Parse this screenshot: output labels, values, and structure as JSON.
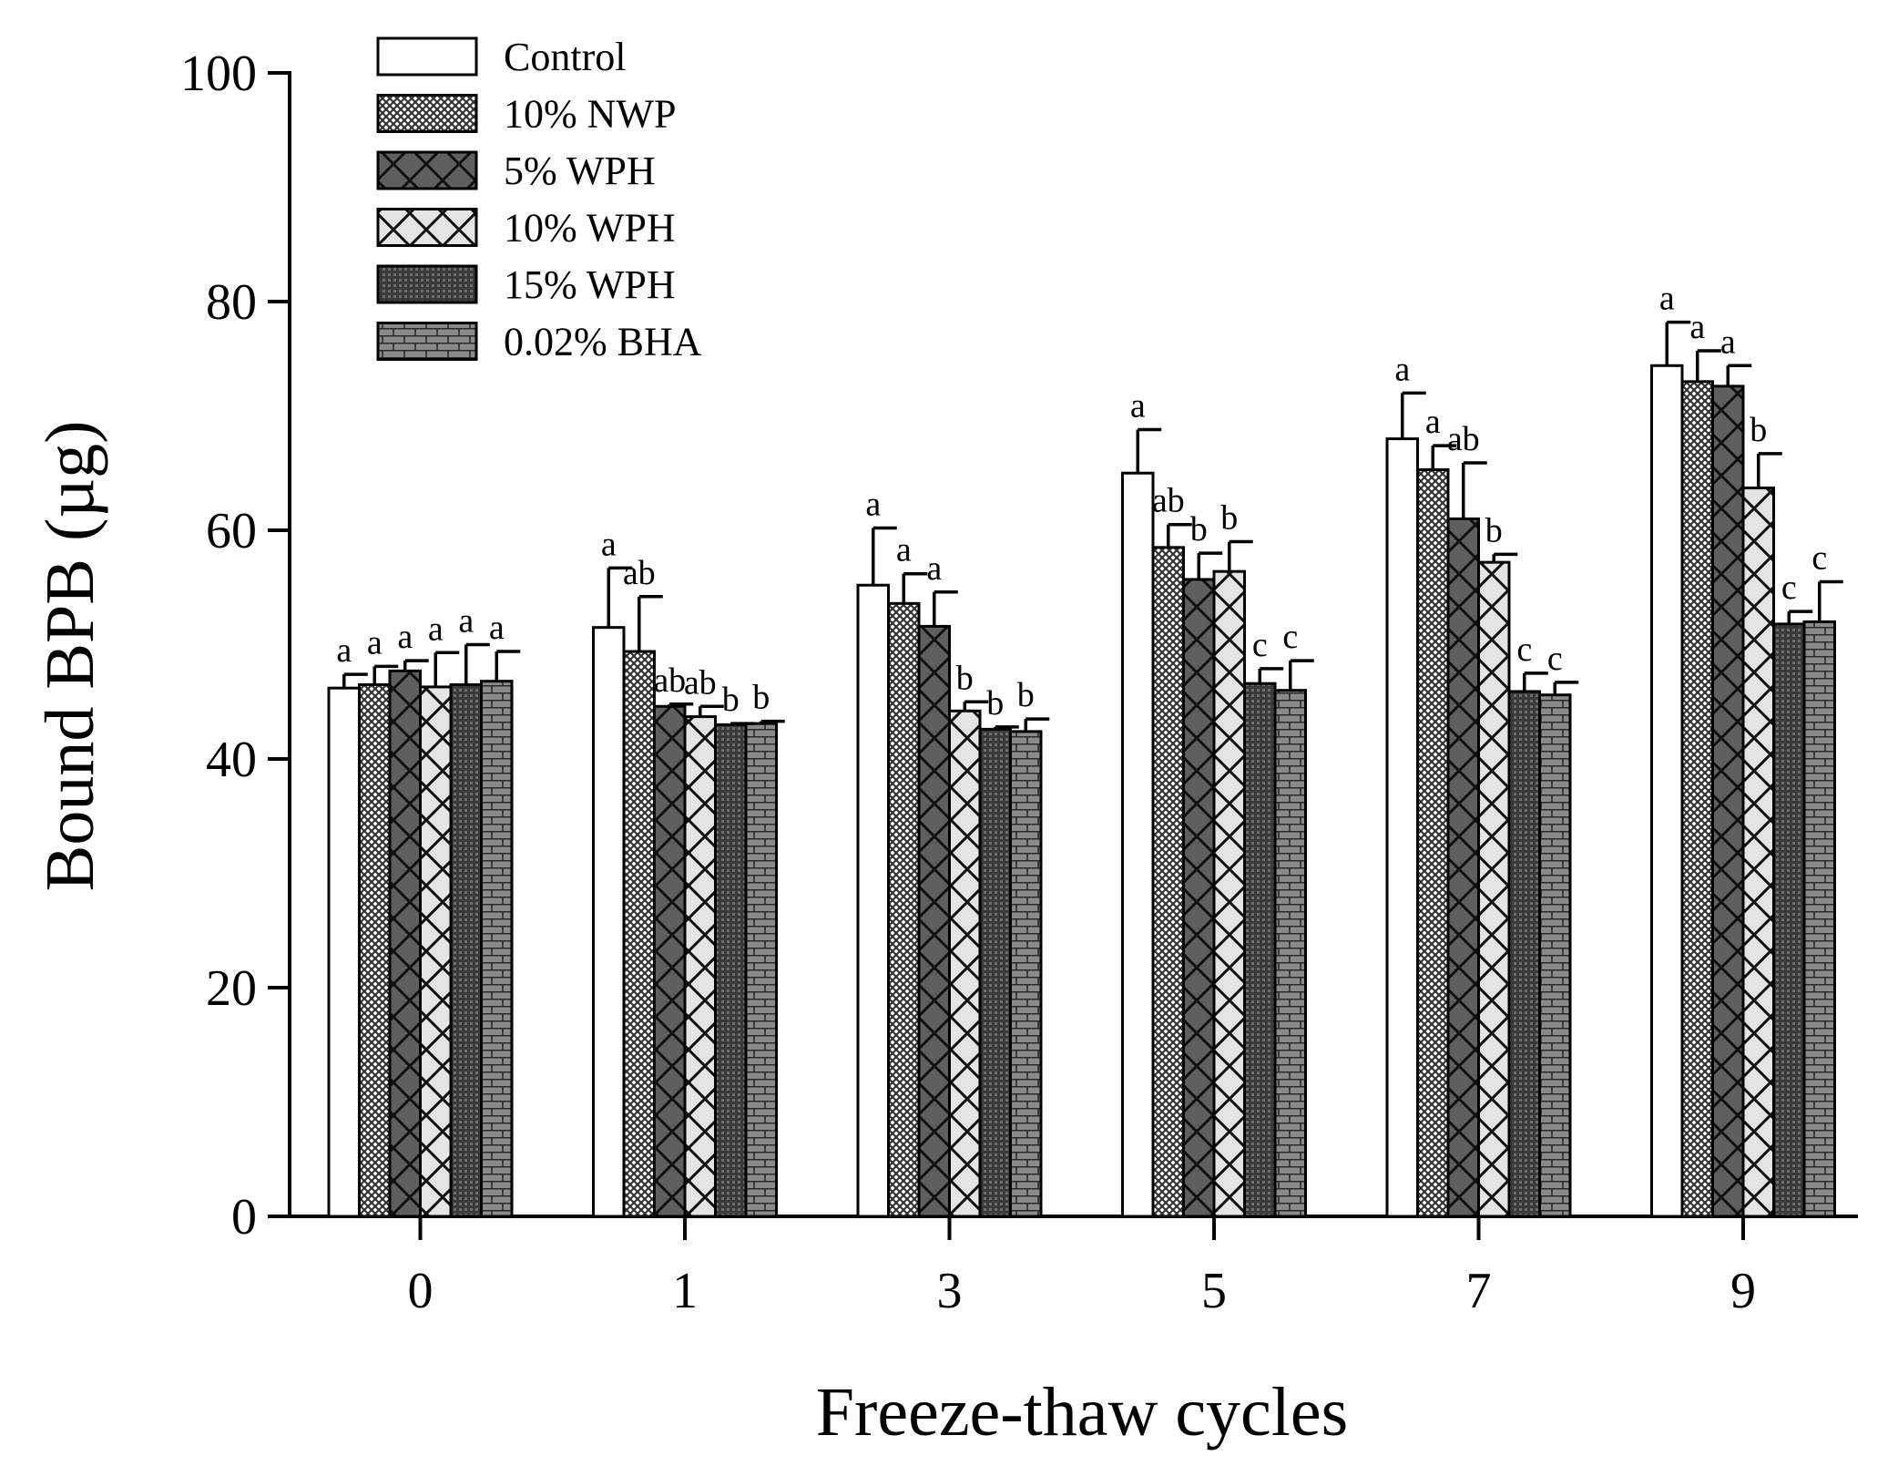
{
  "chart_data": {
    "type": "bar",
    "title": "",
    "xlabel": "Freeze-thaw cycles",
    "ylabel": "Bound BPB (µg)",
    "ylim": [
      0,
      100
    ],
    "yticks": [
      "0",
      "20",
      "40",
      "60",
      "80",
      "100"
    ],
    "categories": [
      "0",
      "1",
      "3",
      "5",
      "7",
      "9"
    ],
    "legend_position": "top-left",
    "grid": false,
    "series": [
      {
        "name": "Control",
        "pattern": "white",
        "values": [
          46.2,
          51.5,
          55.2,
          65.0,
          68.0,
          74.4
        ],
        "errors": [
          1.2,
          5.2,
          5.0,
          3.8,
          4.0,
          3.8
        ],
        "labels": [
          "a",
          "a",
          "a",
          "a",
          "a",
          "a"
        ]
      },
      {
        "name": "10% NWP",
        "pattern": "fine-cross",
        "values": [
          46.5,
          49.4,
          53.6,
          58.5,
          65.3,
          73.0
        ],
        "errors": [
          1.6,
          4.8,
          2.6,
          2.0,
          2.1,
          2.7
        ],
        "labels": [
          "a",
          "ab",
          "a",
          "ab",
          "a",
          "a"
        ]
      },
      {
        "name": "5% WPH",
        "pattern": "dark-cross",
        "values": [
          47.7,
          44.6,
          51.6,
          55.7,
          61.0,
          72.6
        ],
        "errors": [
          0.9,
          0.2,
          3.0,
          2.3,
          4.9,
          1.8
        ],
        "labels": [
          "a",
          "ab",
          "a",
          "b",
          "ab",
          "a"
        ]
      },
      {
        "name": "10% WPH",
        "pattern": "light-cross",
        "values": [
          46.3,
          43.7,
          44.2,
          56.4,
          57.2,
          63.7
        ],
        "errors": [
          3.0,
          0.9,
          0.8,
          2.6,
          0.7,
          3.0
        ],
        "labels": [
          "a",
          "ab",
          "b",
          "b",
          "b",
          "b"
        ]
      },
      {
        "name": "15% WPH",
        "pattern": "dark-dots",
        "values": [
          46.5,
          43.0,
          42.6,
          46.6,
          45.9,
          51.8
        ],
        "errors": [
          3.5,
          0.1,
          0.2,
          1.3,
          1.6,
          1.1
        ],
        "labels": [
          "a",
          "b",
          "b",
          "c",
          "c",
          "c"
        ]
      },
      {
        "name": "0.02% BHA",
        "pattern": "brick",
        "values": [
          46.8,
          43.1,
          42.4,
          46.0,
          45.6,
          52.0
        ],
        "errors": [
          2.6,
          0.2,
          1.1,
          2.6,
          1.1,
          3.5
        ],
        "labels": [
          "a",
          "b",
          "b",
          "c",
          "c",
          "c"
        ]
      }
    ]
  }
}
